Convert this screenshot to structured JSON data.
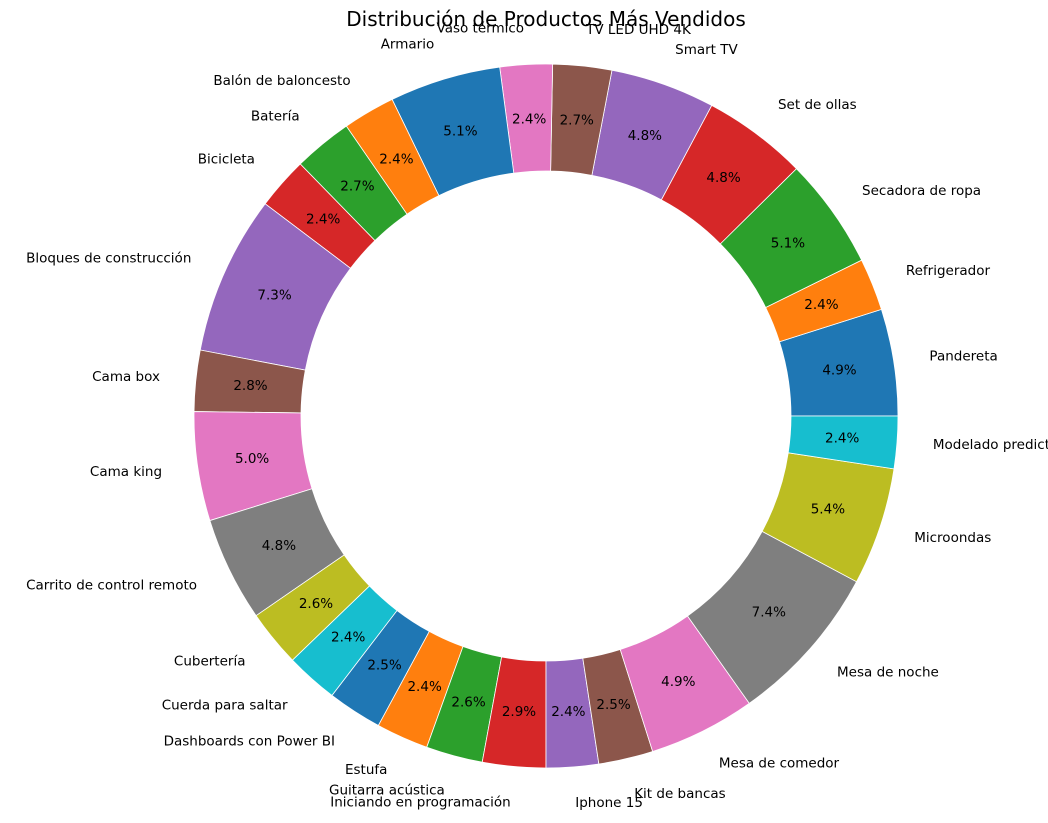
{
  "chart_data": {
    "type": "pie",
    "variant": "donut",
    "title": "Distribución de Productos Más Vendidos",
    "start_angle_deg": 0,
    "direction": "counterclockwise",
    "slices": [
      {
        "label": "Pandereta",
        "pct_label": "4.9%",
        "value": 4.9,
        "color": "#1f77b4"
      },
      {
        "label": "Refrigerador",
        "pct_label": "2.4%",
        "value": 2.4,
        "color": "#ff7f0e"
      },
      {
        "label": "Secadora de ropa",
        "pct_label": "5.1%",
        "value": 5.1,
        "color": "#2ca02c"
      },
      {
        "label": "Set de ollas",
        "pct_label": "4.8%",
        "value": 4.8,
        "color": "#d62728"
      },
      {
        "label": "Smart TV",
        "pct_label": "4.8%",
        "value": 4.8,
        "color": "#9467bd"
      },
      {
        "label": "TV LED UHD 4K",
        "pct_label": "2.7%",
        "value": 2.7,
        "color": "#8c564b"
      },
      {
        "label": "Vaso térmico",
        "pct_label": "2.4%",
        "value": 2.4,
        "color": "#e377c2"
      },
      {
        "label": "Armario",
        "pct_label": "5.1%",
        "value": 5.1,
        "color": "#1f77b4"
      },
      {
        "label": "Balón de baloncesto",
        "pct_label": "2.4%",
        "value": 2.4,
        "color": "#ff7f0e"
      },
      {
        "label": "Batería",
        "pct_label": "2.7%",
        "value": 2.7,
        "color": "#2ca02c"
      },
      {
        "label": "Bicicleta",
        "pct_label": "2.4%",
        "value": 2.4,
        "color": "#d62728"
      },
      {
        "label": "Bloques de construcción",
        "pct_label": "7.3%",
        "value": 7.3,
        "color": "#9467bd"
      },
      {
        "label": "Cama box",
        "pct_label": "2.8%",
        "value": 2.8,
        "color": "#8c564b"
      },
      {
        "label": "Cama king",
        "pct_label": "5.0%",
        "value": 5.0,
        "color": "#e377c2"
      },
      {
        "label": "Carrito de control remoto",
        "pct_label": "4.8%",
        "value": 4.8,
        "color": "#7f7f7f"
      },
      {
        "label": "Cubertería",
        "pct_label": "2.6%",
        "value": 2.6,
        "color": "#bcbd22"
      },
      {
        "label": "Cuerda para saltar",
        "pct_label": "2.4%",
        "value": 2.4,
        "color": "#17becf"
      },
      {
        "label": "Dashboards con Power BI",
        "pct_label": "2.5%",
        "value": 2.5,
        "color": "#1f77b4"
      },
      {
        "label": "Estufa",
        "pct_label": "2.4%",
        "value": 2.4,
        "color": "#ff7f0e"
      },
      {
        "label": "Guitarra acústica",
        "pct_label": "2.6%",
        "value": 2.6,
        "color": "#2ca02c"
      },
      {
        "label": "Iniciando en programación",
        "pct_label": "2.9%",
        "value": 2.9,
        "color": "#d62728"
      },
      {
        "label": "Iphone 15",
        "pct_label": "2.4%",
        "value": 2.4,
        "color": "#9467bd"
      },
      {
        "label": "Kit de bancas",
        "pct_label": "2.5%",
        "value": 2.5,
        "color": "#8c564b"
      },
      {
        "label": "Mesa de comedor",
        "pct_label": "4.9%",
        "value": 4.9,
        "color": "#e377c2"
      },
      {
        "label": "Mesa de noche",
        "pct_label": "7.4%",
        "value": 7.4,
        "color": "#7f7f7f"
      },
      {
        "label": "Microondas",
        "pct_label": "5.4%",
        "value": 5.4,
        "color": "#bcbd22"
      },
      {
        "label": "Modelado predictivo",
        "pct_label": "2.4%",
        "value": 2.4,
        "color": "#17becf"
      }
    ]
  }
}
